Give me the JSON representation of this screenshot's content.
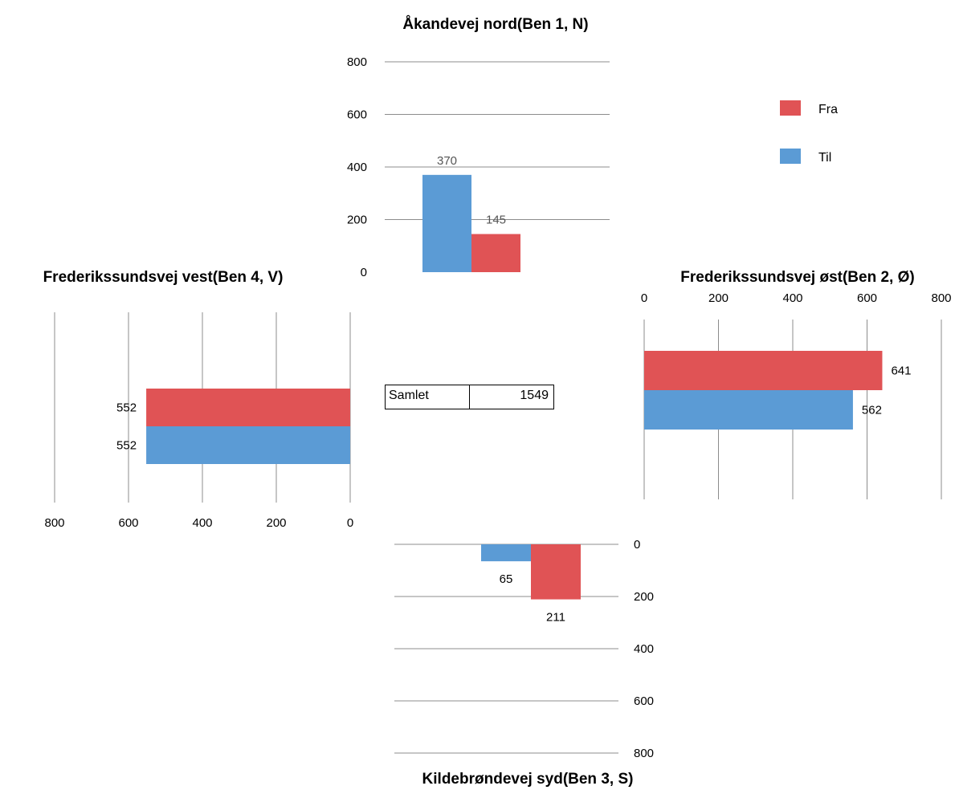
{
  "legend": [
    {
      "label": "Fra",
      "color": "#e05355"
    },
    {
      "label": "Til",
      "color": "#5b9bd5"
    }
  ],
  "summary": {
    "label": "Samlet",
    "value": "1549"
  },
  "chart_data": [
    {
      "id": "north",
      "type": "bar",
      "orientation": "vertical",
      "title": "Åkandevej nord(Ben 1, N)",
      "ticks": [
        0,
        200,
        400,
        600,
        800
      ],
      "ylim": [
        0,
        800
      ],
      "series": [
        {
          "name": "Til",
          "values": [
            370
          ]
        },
        {
          "name": "Fra",
          "values": [
            145
          ]
        }
      ]
    },
    {
      "id": "east",
      "type": "bar",
      "orientation": "horizontal",
      "title": "Frederikssundsvej øst(Ben 2, Ø)",
      "ticks": [
        0,
        200,
        400,
        600,
        800
      ],
      "xlim": [
        0,
        800
      ],
      "series": [
        {
          "name": "Fra",
          "values": [
            641
          ]
        },
        {
          "name": "Til",
          "values": [
            562
          ]
        }
      ]
    },
    {
      "id": "south",
      "type": "bar",
      "orientation": "vertical",
      "direction": "downward",
      "title": "Kildebrøndevej syd(Ben 3, S)",
      "ticks": [
        0,
        200,
        400,
        600,
        800
      ],
      "ylim": [
        0,
        800
      ],
      "series": [
        {
          "name": "Til",
          "values": [
            65
          ]
        },
        {
          "name": "Fra",
          "values": [
            211
          ]
        }
      ]
    },
    {
      "id": "west",
      "type": "bar",
      "orientation": "horizontal",
      "direction": "leftward",
      "title": "Frederikssundsvej vest(Ben 4, V)",
      "ticks": [
        800,
        600,
        400,
        200,
        0
      ],
      "xlim": [
        0,
        800
      ],
      "series": [
        {
          "name": "Fra",
          "values": [
            552
          ]
        },
        {
          "name": "Til",
          "values": [
            552
          ]
        }
      ]
    }
  ]
}
